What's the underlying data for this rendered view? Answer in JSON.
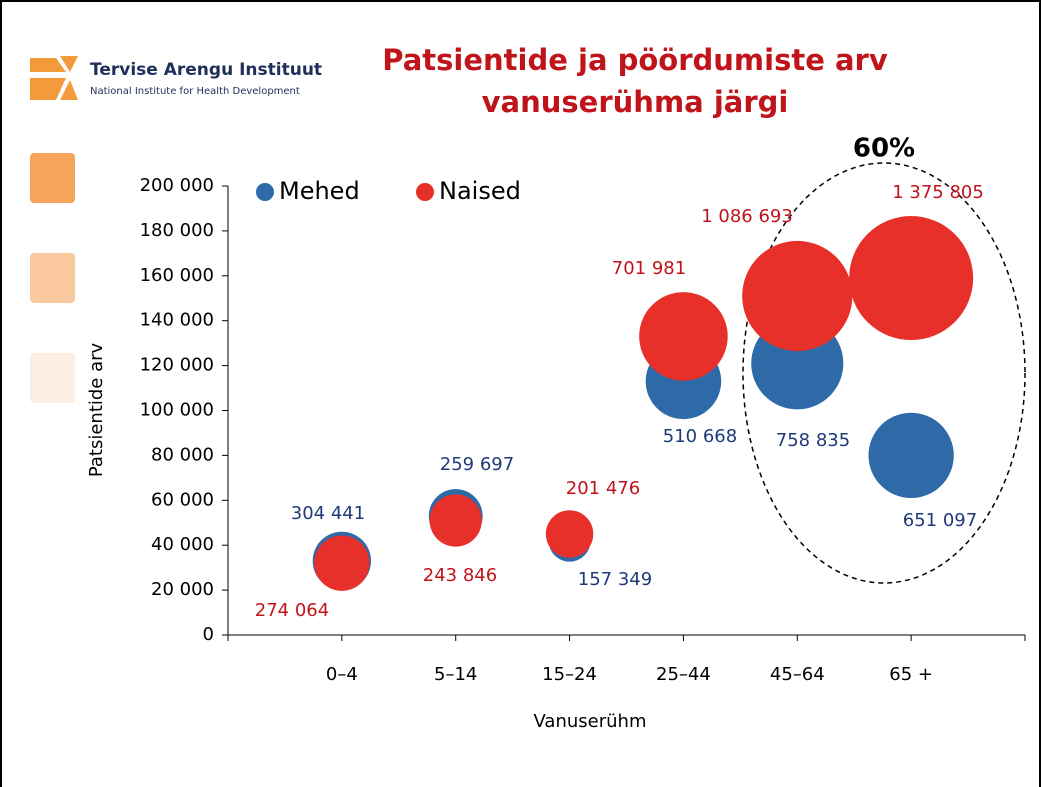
{
  "header": {
    "org_name": "Tervise Arengu Instituut",
    "org_subtitle": "National Institute for Health Development"
  },
  "chart_data": {
    "type": "bubble",
    "title": "Patsientide ja pöördumiste arv",
    "subtitle": "vanuserühma järgi",
    "annotation": "60%",
    "y_label": "Patsientide arv",
    "x_label": "Vanuserühm",
    "categories": [
      "0–4",
      "5–14",
      "15–24",
      "25–44",
      "45–64",
      "65 +"
    ],
    "ylim": [
      0,
      200000
    ],
    "yticks": [
      0,
      {
        "value": 20000,
        "label": "20 000"
      },
      {
        "value": 40000,
        "label": "40 000"
      },
      {
        "value": 60000,
        "label": "60 000"
      },
      {
        "value": 80000,
        "label": "80 000"
      },
      {
        "value": 100000,
        "label": "100 000"
      },
      {
        "value": 120000,
        "label": "120 000"
      },
      {
        "value": 140000,
        "label": "140 000"
      },
      {
        "value": 160000,
        "label": "160 000"
      },
      {
        "value": 180000,
        "label": "180 000"
      },
      {
        "value": 200000,
        "label": "200 000"
      }
    ],
    "series": [
      {
        "name": "Mehed",
        "color": "#2e6aa8",
        "label_color": "#1f3a7a",
        "values": [
          33000,
          53000,
          42000,
          113000,
          121000,
          80000
        ],
        "sizes": [
          304441,
          259697,
          157349,
          510668,
          758835,
          651097
        ],
        "value_labels": [
          "304 441",
          "259 697",
          "157 349",
          "510 668",
          "758 835",
          "651 097"
        ]
      },
      {
        "name": "Naised",
        "color": "#e8302a",
        "label_color": "#c0141b",
        "values": [
          32000,
          51000,
          45000,
          133000,
          151000,
          159000
        ],
        "sizes": [
          274064,
          243846,
          201476,
          701981,
          1086693,
          1375805
        ],
        "value_labels": [
          "274 064",
          "243 846",
          "201 476",
          "701 981",
          "1 086 693",
          "1 375 805"
        ]
      }
    ]
  }
}
